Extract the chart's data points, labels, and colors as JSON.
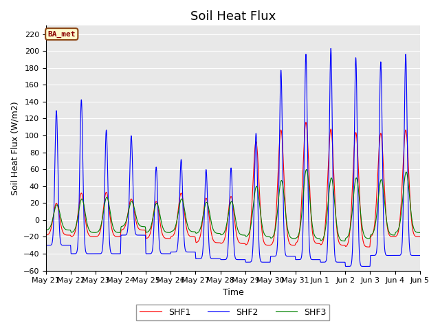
{
  "title": "Soil Heat Flux",
  "xlabel": "Time",
  "ylabel": "Soil Heat Flux (W/m2)",
  "ylim": [
    -60,
    230
  ],
  "yticks": [
    -60,
    -40,
    -20,
    0,
    20,
    40,
    60,
    80,
    100,
    120,
    140,
    160,
    180,
    200,
    220
  ],
  "legend_labels": [
    "SHF1",
    "SHF2",
    "SHF3"
  ],
  "colors": [
    "red",
    "blue",
    "green"
  ],
  "annotation_text": "BA_met",
  "annotation_color": "#8B0000",
  "annotation_bg": "#FFFACD",
  "annotation_border": "#8B4513",
  "background_color": "#E8E8E8",
  "shf2_peaks": [
    130,
    143,
    107,
    100,
    63,
    72,
    60,
    62,
    103,
    178,
    197,
    204,
    193,
    188,
    197
  ],
  "shf1_peaks": [
    20,
    32,
    33,
    25,
    22,
    32,
    26,
    28,
    93,
    107,
    116,
    108,
    104,
    103,
    107
  ],
  "shf3_peaks": [
    18,
    25,
    27,
    22,
    20,
    25,
    21,
    22,
    40,
    47,
    60,
    50,
    50,
    48,
    57
  ],
  "shf2_troughs": [
    -30,
    -40,
    -40,
    -18,
    -40,
    -38,
    -46,
    -47,
    -50,
    -43,
    -47,
    -50,
    -55,
    -42,
    -42
  ],
  "shf1_troughs": [
    -18,
    -20,
    -20,
    -12,
    -22,
    -20,
    -27,
    -28,
    -30,
    -30,
    -28,
    -30,
    -32,
    -20,
    -20
  ],
  "shf3_troughs": [
    -12,
    -15,
    -15,
    -8,
    -15,
    -14,
    -16,
    -18,
    -20,
    -22,
    -22,
    -25,
    -22,
    -18,
    -15
  ],
  "n_days": 15,
  "pts_per_day": 200,
  "title_fontsize": 13,
  "axis_fontsize": 9,
  "tick_fontsize": 8
}
